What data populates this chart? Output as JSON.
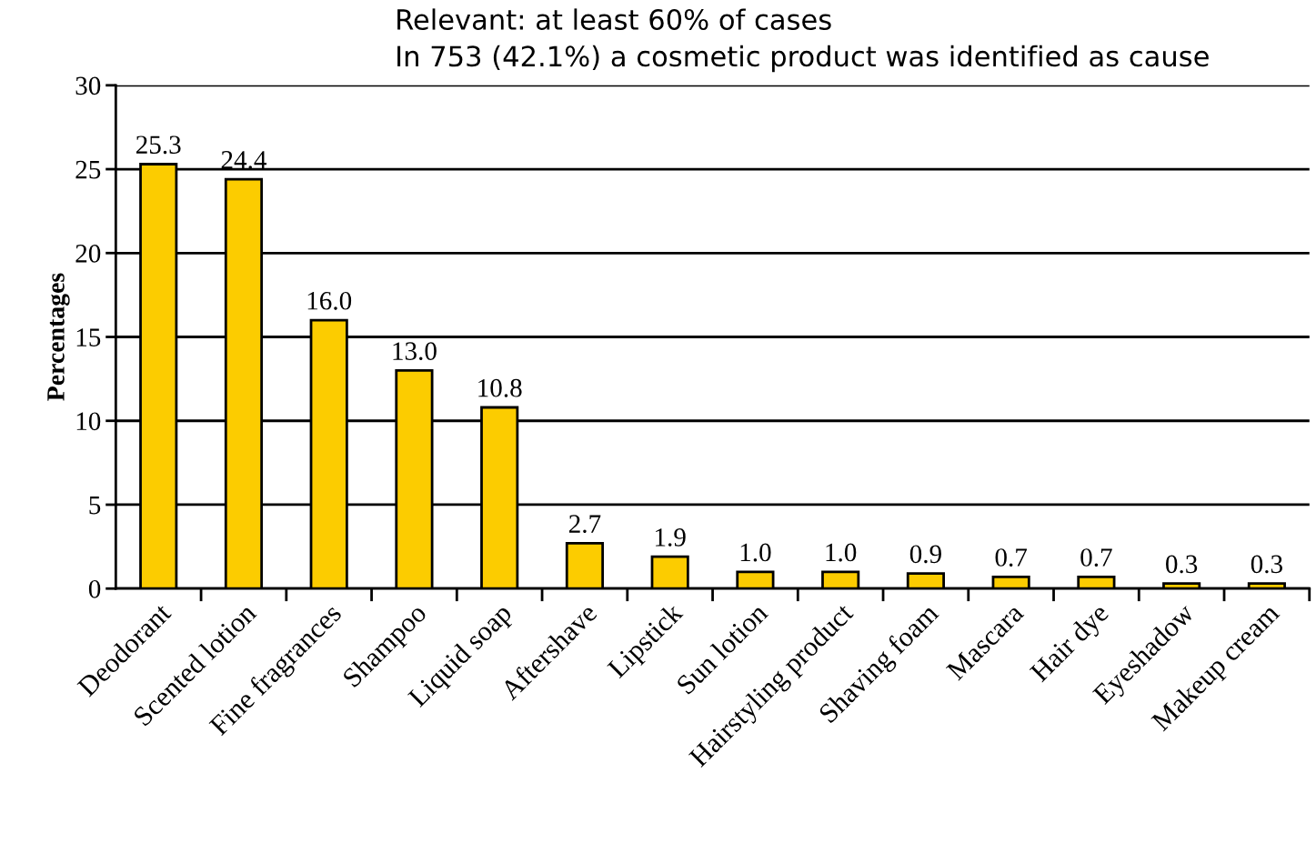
{
  "chart_data": {
    "type": "bar",
    "ylabel": "Percentages",
    "annotations": [
      "Relevant: at least 60% of cases",
      "In 753 (42.1%) a cosmetic product was identified as cause"
    ],
    "categories": [
      "Deodorant",
      "Scented lotion",
      "Fine fragrances",
      "Shampoo",
      "Liquid soap",
      "Aftershave",
      "Lipstick",
      "Sun lotion",
      "Hairstyling product",
      "Shaving foam",
      "Mascara",
      "Hair dye",
      "Eyeshadow",
      "Makeup cream"
    ],
    "values": [
      25.3,
      24.4,
      16.0,
      13.0,
      10.8,
      2.7,
      1.9,
      1.0,
      1.0,
      0.9,
      0.7,
      0.7,
      0.3,
      0.3
    ],
    "value_labels": [
      "25.3",
      "24.4",
      "16.0",
      "13.0",
      "10.8",
      "2.7",
      "1.9",
      "1.0",
      "1.0",
      "0.9",
      "0.7",
      "0.7",
      "0.3",
      "0.3"
    ],
    "color": "#fccc00",
    "ylim": [
      0,
      30
    ],
    "yticks": [
      0,
      5,
      10,
      15,
      20,
      25,
      30
    ],
    "grid": "y",
    "legend": false
  }
}
